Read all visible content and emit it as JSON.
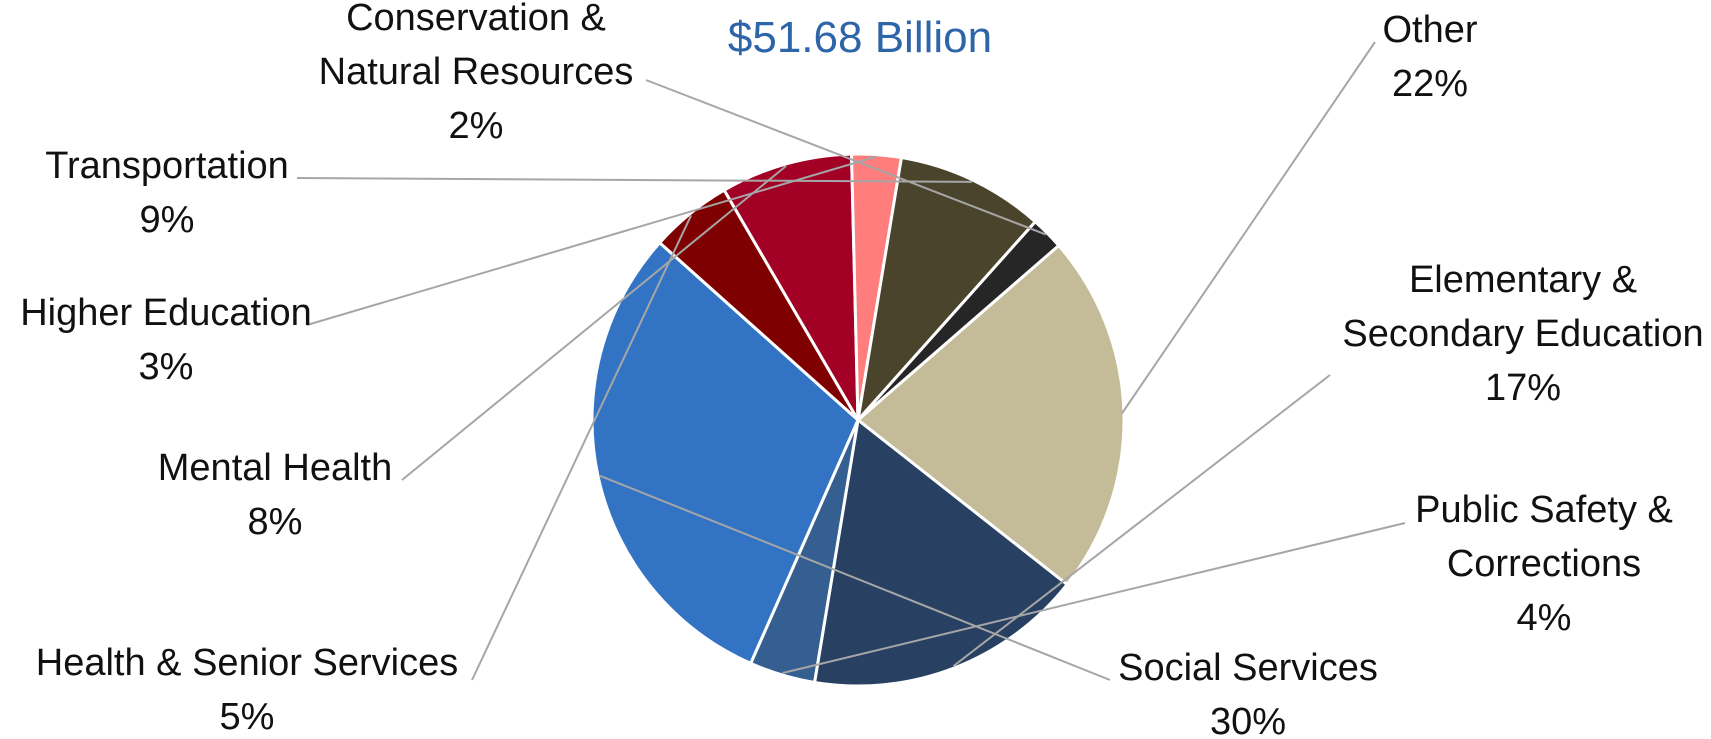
{
  "chart_data": {
    "type": "pie",
    "title": "$51.68 Billion",
    "slices": [
      {
        "name": "Other",
        "lines": [
          "Other"
        ],
        "pct_label": "22%",
        "value": 22,
        "color": "#c4bc98"
      },
      {
        "name": "Elementary & Secondary Education",
        "lines": [
          "Elementary &",
          "Secondary Education"
        ],
        "pct_label": "17%",
        "value": 17,
        "color": "#284163"
      },
      {
        "name": "Public Safety & Corrections",
        "lines": [
          "Public Safety &",
          "Corrections"
        ],
        "pct_label": "4%",
        "value": 4,
        "color": "#365f91"
      },
      {
        "name": "Social Services",
        "lines": [
          "Social Services"
        ],
        "pct_label": "30%",
        "value": 30,
        "color": "#3273c4"
      },
      {
        "name": "Health & Senior Services",
        "lines": [
          "Health & Senior Services"
        ],
        "pct_label": "5%",
        "value": 5,
        "color": "#7f0000"
      },
      {
        "name": "Mental Health",
        "lines": [
          "Mental Health"
        ],
        "pct_label": "8%",
        "value": 8,
        "color": "#a20025"
      },
      {
        "name": "Higher Education",
        "lines": [
          "Higher Education"
        ],
        "pct_label": "3%",
        "value": 3,
        "color": "#ff7d7d"
      },
      {
        "name": "Transportation",
        "lines": [
          "Transportation"
        ],
        "pct_label": "9%",
        "value": 9,
        "color": "#4b442c"
      },
      {
        "name": "Conservation & Natural Resources",
        "lines": [
          "Conservation &",
          "Natural Resources"
        ],
        "pct_label": "2%",
        "value": 2,
        "color": "#262626"
      }
    ],
    "title_color": "#2e64a8",
    "leader_color": "#a6a6a6",
    "separator_color": "#ffffff"
  }
}
